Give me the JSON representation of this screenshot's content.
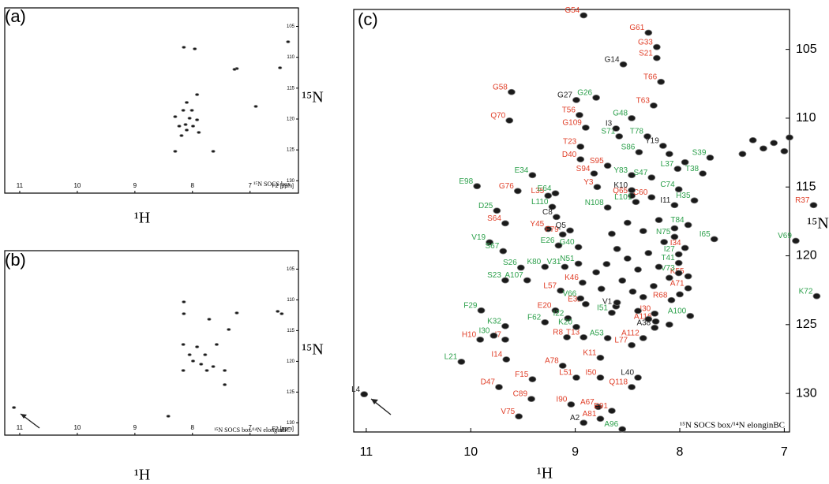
{
  "chart_data": [
    {
      "type": "scatter",
      "title": "(a)",
      "xlabel": "¹H",
      "ylabel": "¹⁵N",
      "x_unit": "F2 [ppm]",
      "annotation": "¹⁵N SOCS box",
      "xlim": [
        11.26,
        6.16
      ],
      "ylim": [
        102,
        132
      ],
      "xticks": [
        11,
        10,
        9,
        8,
        7
      ],
      "yticks": [
        105,
        110,
        115,
        120,
        125,
        130
      ],
      "series": [
        {
          "color": "#111111",
          "x": [
            8.15,
            7.96,
            6.34,
            7.23,
            6.48,
            7.27,
            7.92,
            8.1,
            8.16,
            8.01,
            8.3,
            8.05,
            7.92,
            8.12,
            8.23,
            7.99,
            8.1,
            8.19,
            7.89,
            8.3,
            7.64,
            6.9
          ],
          "values": [
            108.38,
            108.64,
            107.49,
            111.83,
            111.7,
            111.96,
            116.04,
            117.32,
            118.6,
            118.6,
            119.62,
            119.87,
            120.13,
            120.89,
            121.15,
            121.15,
            121.79,
            122.68,
            122.17,
            125.23,
            125.23,
            117.96
          ]
        }
      ]
    },
    {
      "type": "scatter",
      "title": "(b)",
      "xlabel": "¹H",
      "ylabel": "¹⁵N",
      "x_unit": "F2 [ppm]",
      "annotation": "¹⁵N SOCS box/¹⁴N elonginBC",
      "xlim": [
        11.26,
        6.16
      ],
      "ylim": [
        102,
        132
      ],
      "xticks": [
        11,
        10,
        9,
        8,
        7
      ],
      "yticks": [
        105,
        110,
        115,
        120,
        125,
        130
      ],
      "series": [
        {
          "color": "#111111",
          "x": [
            8.15,
            8.15,
            7.23,
            6.52,
            6.45,
            7.71,
            7.37,
            8.16,
            7.92,
            7.58,
            8.05,
            7.78,
            7.99,
            7.85,
            7.64,
            8.16,
            7.44,
            7.75,
            7.44,
            8.42,
            11.1
          ],
          "values": [
            110.33,
            112.26,
            112.13,
            111.87,
            112.26,
            113.15,
            114.82,
            117.26,
            117.64,
            117.26,
            118.92,
            118.92,
            119.95,
            120.46,
            120.85,
            121.49,
            121.49,
            121.49,
            123.79,
            128.92,
            127.51
          ]
        }
      ]
    },
    {
      "type": "scatter",
      "title": "(c)",
      "xlabel": "¹H",
      "ylabel": "¹⁵N",
      "annotation": "¹⁵N SOCS box/¹⁴N elonginBC",
      "xlim": [
        11.12,
        6.95
      ],
      "ylim": [
        102.1,
        132.8
      ],
      "xticks": [
        11,
        10,
        9,
        8,
        7
      ],
      "yticks": [
        105,
        110,
        115,
        120,
        125,
        130
      ],
      "series": [
        {
          "color": "#e0402a",
          "labels": [
            "G54",
            "G61",
            "G33",
            "S21",
            "T66",
            "G58",
            "T63",
            "Q70",
            "T56",
            "G109",
            "T23",
            "D40",
            "S95",
            "S94",
            "Y3",
            "G76",
            "L35",
            "Q65",
            "C60",
            "R37",
            "S64",
            "Y45",
            "F79",
            "I34",
            "K46",
            "L57",
            "K55",
            "A71",
            "E32",
            "R68",
            "E20",
            "I30",
            "A116",
            "I7",
            "R8",
            "T13",
            "H10",
            "A112",
            "L77",
            "K11",
            "I14",
            "A78",
            "F15",
            "L51",
            "I50",
            "Q118",
            "D47",
            "C89",
            "I90",
            "A67",
            "E91",
            "A81",
            "V75"
          ],
          "x": [
            8.92,
            8.3,
            8.22,
            8.22,
            8.18,
            9.61,
            8.25,
            9.63,
            8.96,
            8.9,
            8.95,
            8.95,
            8.69,
            8.82,
            8.79,
            9.55,
            9.26,
            8.46,
            8.27,
            6.72,
            9.67,
            9.26,
            9.12,
            7.95,
            8.93,
            9.14,
            7.92,
            7.92,
            8.9,
            8.08,
            9.19,
            8.24,
            8.23,
            9.67,
            9.08,
            8.92,
            9.91,
            8.35,
            8.46,
            8.76,
            9.66,
            9.12,
            9.41,
            8.99,
            8.76,
            8.46,
            9.73,
            9.42,
            9.04,
            8.78,
            8.65,
            8.76,
            9.54
          ],
          "values": [
            102.53,
            103.79,
            104.83,
            105.63,
            107.36,
            108.1,
            109.08,
            110.17,
            109.77,
            110.69,
            112.07,
            112.99,
            113.45,
            114.02,
            115.0,
            115.29,
            115.63,
            115.63,
            115.75,
            116.32,
            117.64,
            118.05,
            118.45,
            119.43,
            121.95,
            122.53,
            121.49,
            122.36,
            123.51,
            123.22,
            123.97,
            124.2,
            124.77,
            126.09,
            125.92,
            125.92,
            126.09,
            125.98,
            126.49,
            127.41,
            127.53,
            127.99,
            128.97,
            128.85,
            128.85,
            129.54,
            129.54,
            130.4,
            130.8,
            130.98,
            131.26,
            131.84,
            131.67
          ]
        },
        {
          "color": "#2ca04b",
          "labels": [
            "G26",
            "G48",
            "S71",
            "T78",
            "S86",
            "S39",
            "L37",
            "T38",
            "Y83",
            "S47",
            "E34",
            "E98",
            "C74",
            "E64",
            "H35",
            "L101",
            "L110",
            "N108",
            "D25",
            "T84",
            "N75",
            "I65",
            "V69",
            "V19",
            "E26",
            "G40",
            "S67",
            "I27",
            "T41",
            "N51",
            "K80",
            "V31",
            "S26",
            "V73",
            "A107",
            "S23",
            "V66",
            "K72",
            "F29",
            "I51",
            "A100",
            "I22",
            "F62",
            "K20",
            "K32",
            "I30",
            "A53",
            "L21",
            "A96"
          ],
          "x": [
            8.8,
            8.46,
            8.58,
            8.31,
            8.39,
            7.71,
            8.02,
            7.78,
            8.46,
            8.27,
            9.41,
            9.94,
            8.01,
            9.19,
            7.86,
            8.42,
            9.22,
            8.69,
            9.75,
            7.92,
            8.05,
            7.67,
            6.89,
            9.82,
            9.16,
            8.97,
            9.69,
            8.01,
            8.01,
            8.97,
            9.29,
            9.1,
            9.52,
            8.01,
            9.46,
            9.67,
            8.95,
            6.69,
            9.9,
            8.65,
            7.9,
            9.07,
            9.29,
            8.99,
            9.67,
            9.78,
            8.69,
            10.09,
            8.55
          ],
          "values": [
            108.51,
            110.0,
            111.32,
            111.32,
            112.47,
            112.87,
            113.68,
            114.02,
            114.14,
            114.31,
            114.14,
            114.94,
            115.17,
            115.46,
            115.98,
            116.09,
            116.44,
            116.49,
            116.72,
            117.76,
            118.62,
            118.79,
            118.91,
            119.02,
            119.25,
            119.37,
            119.66,
            119.89,
            120.52,
            120.57,
            120.8,
            120.8,
            120.86,
            121.26,
            121.78,
            121.78,
            123.1,
            122.93,
            123.97,
            124.14,
            124.37,
            124.54,
            124.83,
            125.17,
            125.11,
            125.8,
            125.98,
            127.7,
            132.6
          ]
        },
        {
          "color": "#222222",
          "labels": [
            "G14",
            "G27",
            "I3",
            "Y19",
            "K10",
            "I11",
            "C8",
            "Q5",
            "V1",
            "A38",
            "L40",
            "A2",
            "L4"
          ],
          "x": [
            8.54,
            8.99,
            8.61,
            8.16,
            8.46,
            8.05,
            9.18,
            9.05,
            8.61,
            8.24,
            8.4,
            8.92,
            11.02
          ],
          "values": [
            106.09,
            108.68,
            110.75,
            112.01,
            115.23,
            116.32,
            117.18,
            118.16,
            123.68,
            125.23,
            128.85,
            132.13,
            130.06
          ]
        },
        {
          "color": "#222222",
          "x": [
            8.6,
            8.5,
            8.4,
            8.3,
            8.2,
            8.1,
            8.55,
            8.45,
            8.35,
            8.7,
            8.75,
            8.25,
            8.15,
            8.65,
            8.5,
            8.35,
            8.2,
            8.05,
            8.4,
            8.3,
            8.1,
            8.6,
            8.8,
            8.0,
            7.3,
            7.2,
            7.1,
            7.0,
            7.4,
            6.95,
            8.1,
            7.95
          ],
          "values": [
            119.5,
            120.2,
            121.0,
            119.8,
            120.8,
            121.6,
            121.8,
            122.6,
            123.0,
            120.6,
            122.4,
            122.2,
            119.0,
            118.4,
            117.6,
            118.2,
            117.4,
            118.0,
            124.0,
            124.6,
            125.0,
            123.4,
            121.2,
            122.8,
            111.6,
            112.2,
            111.8,
            112.4,
            112.6,
            111.4,
            112.6,
            113.2
          ]
        }
      ]
    }
  ]
}
